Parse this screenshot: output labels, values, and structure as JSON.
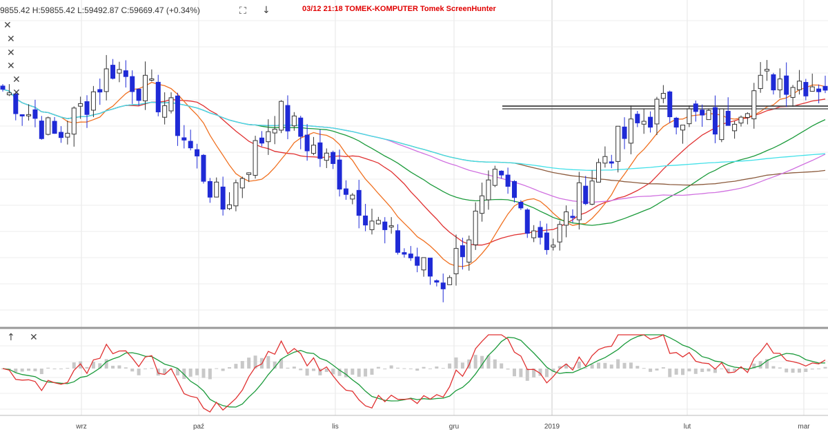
{
  "header": {
    "ohlc_text": "9855.42  H:59855.42  L:59492.87  C:59669.47  (+0.34%)",
    "expand_icon": "expand-icon",
    "download_icon": "arrow-down-icon",
    "stamp": "03/12  21:18  TOMEK-KOMPUTER  Tomek  ScreenHunter"
  },
  "chart_data": [
    {
      "type": "candlestick",
      "title": "",
      "x_ticks": [
        "wrz",
        "paź",
        "lis",
        "gru",
        "2019",
        "lut",
        "mar"
      ],
      "colors": {
        "up_candle": "#ffffff",
        "down_candle": "#1f2ad6",
        "grid": "#e4e4e4"
      },
      "moving_averages_colors": [
        "#e03030",
        "#f07020",
        "#1a9a3a",
        "#8b5a3c",
        "#d070e0",
        "#40e0e8"
      ],
      "candles_count": 128,
      "close_trend": [
        0.78,
        0.6,
        0.86,
        0.72,
        0.35,
        0.7,
        0.5,
        0.25,
        0.08,
        0.45,
        0.22,
        0.55,
        0.72,
        0.65,
        0.82,
        0.8
      ]
    },
    {
      "type": "line+histogram",
      "title": "",
      "series": [
        {
          "name": "",
          "color": "#e03030"
        },
        {
          "name": "",
          "color": "#1a9a3a"
        }
      ],
      "histogram_color": "#c8c8c8"
    }
  ]
}
